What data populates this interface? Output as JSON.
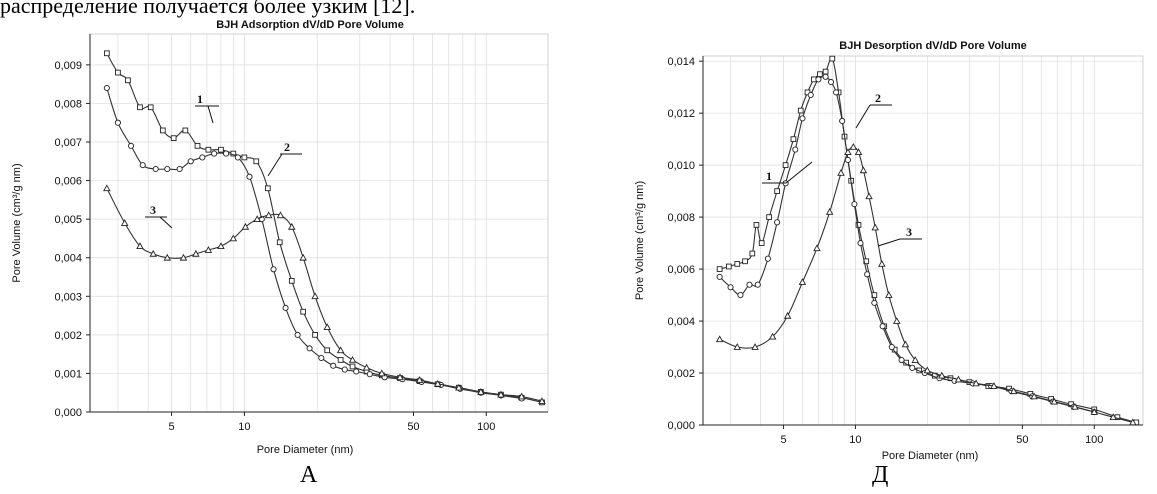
{
  "top_text": "распределение получается более узким [12].",
  "captions": {
    "left": "А",
    "right": "Д"
  },
  "chart_data": [
    {
      "type": "line",
      "title": "BJH Adsorption dV/dD Pore Volume",
      "xlabel": "Pore Diameter (nm)",
      "ylabel": "Pore Volume (cm³/g nm)",
      "x_scale": "log",
      "xlim": [
        2.3,
        180
      ],
      "ylim": [
        0,
        0.0098
      ],
      "x_ticks": [
        5,
        10,
        50,
        100
      ],
      "x_tick_labels": [
        "5",
        "10",
        "50",
        "100"
      ],
      "y_ticks": [
        0,
        0.001,
        0.002,
        0.003,
        0.004,
        0.005,
        0.006,
        0.007,
        0.008,
        0.009
      ],
      "y_tick_labels": [
        "0,000",
        "0,001",
        "0,002",
        "0,003",
        "0,004",
        "0,005",
        "0,006",
        "0,007",
        "0,008",
        "0,009"
      ],
      "grid": true,
      "series": [
        {
          "name": "1",
          "marker": "square",
          "x": [
            2.7,
            3.0,
            3.3,
            3.7,
            4.1,
            4.6,
            5.1,
            5.7,
            6.4,
            7.1,
            8.0,
            9.0,
            10.0,
            11.2,
            12.5,
            14.0,
            15.7,
            17.5,
            19.6,
            22.0,
            25,
            28,
            32,
            37,
            44,
            53,
            63,
            77,
            95,
            115,
            140,
            170
          ],
          "y": [
            0.0093,
            0.0088,
            0.0086,
            0.0079,
            0.0079,
            0.0073,
            0.0071,
            0.0073,
            0.0069,
            0.0068,
            0.0068,
            0.0067,
            0.0066,
            0.0065,
            0.0058,
            0.0044,
            0.0034,
            0.0026,
            0.002,
            0.0016,
            0.00135,
            0.00118,
            0.00105,
            0.00095,
            0.00088,
            0.0008,
            0.00072,
            0.00063,
            0.00052,
            0.00045,
            0.00037,
            0.00025
          ]
        },
        {
          "name": "2",
          "marker": "circle",
          "x": [
            2.7,
            3.0,
            3.4,
            3.8,
            4.3,
            4.8,
            5.4,
            6.0,
            6.7,
            7.5,
            8.4,
            9.4,
            10.5,
            11.8,
            13.2,
            14.8,
            16.6,
            18.6,
            20.8,
            23.3,
            26,
            29,
            33,
            38,
            45,
            54,
            65,
            78,
            95,
            115,
            140
          ],
          "y": [
            0.0084,
            0.0075,
            0.0069,
            0.0064,
            0.0063,
            0.0063,
            0.0063,
            0.0065,
            0.0066,
            0.0067,
            0.0067,
            0.0066,
            0.0061,
            0.005,
            0.0037,
            0.0027,
            0.002,
            0.00165,
            0.0014,
            0.0012,
            0.0011,
            0.00105,
            0.00098,
            0.0009,
            0.00085,
            0.00078,
            0.0007,
            0.0006,
            0.0005,
            0.00043,
            0.00035
          ]
        },
        {
          "name": "3",
          "marker": "triangle",
          "x": [
            2.7,
            3.2,
            3.7,
            4.2,
            4.8,
            5.6,
            6.3,
            7.1,
            8.0,
            9.0,
            10.1,
            11.3,
            12.6,
            14.1,
            15.7,
            17.5,
            19.6,
            22.0,
            25,
            28,
            32,
            37,
            44,
            53,
            63,
            77,
            95,
            115,
            140,
            170
          ],
          "y": [
            0.0058,
            0.0049,
            0.0043,
            0.0041,
            0.004,
            0.004,
            0.0041,
            0.0042,
            0.0043,
            0.0045,
            0.0048,
            0.005,
            0.0051,
            0.0051,
            0.0048,
            0.004,
            0.003,
            0.0022,
            0.0016,
            0.00135,
            0.00115,
            0.001,
            0.0009,
            0.00083,
            0.00073,
            0.00063,
            0.00052,
            0.00045,
            0.0004,
            0.00028
          ]
        }
      ]
    },
    {
      "type": "line",
      "title": "BJH Desorption dV/dD Pore Volume",
      "xlabel": "Pore Diameter (nm)",
      "ylabel": "Pore Volume (cm³/g nm)",
      "x_scale": "log",
      "xlim": [
        2.3,
        160
      ],
      "ylim": [
        0,
        0.0142
      ],
      "x_ticks": [
        5,
        10,
        50,
        100
      ],
      "x_tick_labels": [
        "5",
        "10",
        "50",
        "100"
      ],
      "y_ticks": [
        0,
        0.002,
        0.004,
        0.006,
        0.008,
        0.01,
        0.012,
        0.014
      ],
      "y_tick_labels": [
        "0,000",
        "0,002",
        "0,004",
        "0,006",
        "0,008",
        "0,010",
        "0,012",
        "0,014"
      ],
      "grid": true,
      "series": [
        {
          "name": "1",
          "marker": "square",
          "x": [
            2.7,
            2.95,
            3.2,
            3.45,
            3.7,
            3.85,
            4.05,
            4.35,
            4.7,
            5.1,
            5.5,
            5.9,
            6.3,
            6.7,
            7.1,
            7.5,
            8.0,
            8.5,
            9.0,
            9.6,
            10.3,
            11.1,
            12.0,
            13.2,
            14.6,
            16.3,
            18.5,
            21.5,
            25,
            30,
            36,
            44,
            54,
            66,
            80,
            100,
            125,
            150
          ],
          "y": [
            0.006,
            0.0061,
            0.0062,
            0.0063,
            0.0066,
            0.0077,
            0.007,
            0.008,
            0.009,
            0.01,
            0.011,
            0.0121,
            0.0128,
            0.0133,
            0.0135,
            0.0136,
            0.0141,
            0.0128,
            0.0111,
            0.0094,
            0.0077,
            0.0063,
            0.005,
            0.0038,
            0.0029,
            0.0024,
            0.0021,
            0.0019,
            0.0018,
            0.00165,
            0.0015,
            0.0014,
            0.0012,
            0.001,
            0.0008,
            0.0006,
            0.0003,
            0.0001
          ]
        },
        {
          "name": "2",
          "marker": "circle",
          "x": [
            2.7,
            3.0,
            3.3,
            3.6,
            3.9,
            4.3,
            4.7,
            5.1,
            5.6,
            6.0,
            6.5,
            7.0,
            7.5,
            7.9,
            8.3,
            8.8,
            9.3,
            9.9,
            10.5,
            11.2,
            12.0,
            13.0,
            14.2,
            15.6,
            17.3,
            19.5,
            22.5,
            26,
            31,
            37,
            45,
            55,
            67,
            82,
            100
          ],
          "y": [
            0.0057,
            0.0053,
            0.005,
            0.0054,
            0.0054,
            0.0064,
            0.0078,
            0.0093,
            0.0106,
            0.0118,
            0.0127,
            0.0133,
            0.0134,
            0.0132,
            0.0128,
            0.0117,
            0.0102,
            0.0085,
            0.007,
            0.0058,
            0.0047,
            0.0038,
            0.003,
            0.0025,
            0.0022,
            0.002,
            0.0018,
            0.0017,
            0.0016,
            0.0015,
            0.0013,
            0.0011,
            0.0009,
            0.0007,
            0.0005
          ]
        },
        {
          "name": "3",
          "marker": "triangle",
          "x": [
            2.7,
            3.2,
            3.8,
            4.5,
            5.2,
            6.0,
            6.9,
            7.8,
            8.7,
            9.3,
            9.8,
            10.3,
            10.8,
            11.4,
            12.1,
            12.9,
            13.8,
            14.9,
            16.2,
            17.8,
            20,
            23,
            27,
            32,
            38,
            46,
            56,
            68,
            83,
            100,
            120,
            145
          ],
          "y": [
            0.0033,
            0.003,
            0.003,
            0.0034,
            0.0042,
            0.0055,
            0.0068,
            0.0082,
            0.0097,
            0.0105,
            0.0107,
            0.0105,
            0.0098,
            0.0088,
            0.0076,
            0.0062,
            0.005,
            0.004,
            0.0031,
            0.0025,
            0.0021,
            0.0019,
            0.00175,
            0.0016,
            0.0015,
            0.0013,
            0.0011,
            0.0009,
            0.0007,
            0.0005,
            0.0003,
            0.0001
          ]
        }
      ]
    }
  ]
}
